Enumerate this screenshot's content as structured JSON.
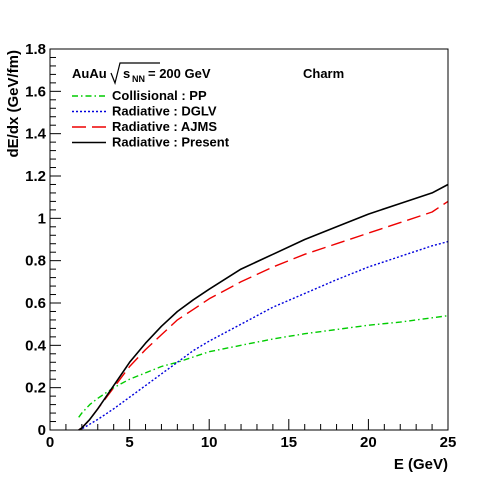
{
  "chart_data": {
    "type": "line",
    "title": "",
    "xlabel": "E (GeV)",
    "ylabel": "dE/dx (GeV/fm)",
    "xlim": [
      0,
      25
    ],
    "ylim": [
      0,
      1.8
    ],
    "grid": false,
    "legend_placement": "top-left",
    "x_ticks": [
      "0",
      "5",
      "10",
      "15",
      "20",
      "25"
    ],
    "y_ticks": [
      "0",
      "0.2",
      "0.4",
      "0.6",
      "0.8",
      "1",
      "1.2",
      "1.4",
      "1.6",
      "1.8"
    ],
    "annotations": {
      "system_prefix": "AuAu",
      "sqrt_symbol": "s",
      "sqrt_subscript": "NN",
      "energy_text": "= 200 GeV",
      "flavor": "Charm"
    },
    "series": [
      {
        "name": "Collisional : PP",
        "color": "#00cc00",
        "dash": "dashdot",
        "x": [
          1.8,
          2,
          2.5,
          3,
          4,
          5,
          6,
          7,
          8,
          9,
          10,
          12,
          14,
          16,
          18,
          20,
          22,
          24,
          25
        ],
        "y": [
          0.06,
          0.08,
          0.12,
          0.15,
          0.2,
          0.24,
          0.27,
          0.3,
          0.32,
          0.345,
          0.37,
          0.4,
          0.43,
          0.455,
          0.475,
          0.495,
          0.51,
          0.53,
          0.54
        ]
      },
      {
        "name": "Radiative : DGLV",
        "color": "#0000dd",
        "dash": "dotted",
        "x": [
          1.8,
          2,
          3,
          4,
          5,
          6,
          7,
          8,
          9,
          10,
          12,
          14,
          16,
          18,
          20,
          22,
          24,
          25
        ],
        "y": [
          0,
          0.005,
          0.05,
          0.1,
          0.155,
          0.21,
          0.265,
          0.32,
          0.375,
          0.42,
          0.5,
          0.58,
          0.645,
          0.71,
          0.77,
          0.82,
          0.87,
          0.89
        ]
      },
      {
        "name": "Radiative : AJMS",
        "color": "#ee0000",
        "dash": "longdash",
        "x": [
          1.8,
          2,
          2.5,
          3,
          4,
          5,
          6,
          7,
          8,
          9,
          10,
          12,
          14,
          16,
          18,
          20,
          22,
          24,
          25
        ],
        "y": [
          0,
          0.01,
          0.05,
          0.1,
          0.2,
          0.3,
          0.38,
          0.45,
          0.52,
          0.57,
          0.62,
          0.7,
          0.77,
          0.83,
          0.88,
          0.93,
          0.98,
          1.03,
          1.08
        ]
      },
      {
        "name": "Radiative : Present",
        "color": "#000000",
        "dash": "solid",
        "x": [
          1.8,
          2,
          2.5,
          3,
          4,
          5,
          6,
          7,
          8,
          9,
          10,
          12,
          14,
          16,
          18,
          20,
          22,
          24,
          25
        ],
        "y": [
          0,
          0.01,
          0.05,
          0.1,
          0.21,
          0.32,
          0.41,
          0.49,
          0.56,
          0.615,
          0.665,
          0.76,
          0.83,
          0.9,
          0.96,
          1.02,
          1.07,
          1.12,
          1.16
        ]
      }
    ]
  }
}
